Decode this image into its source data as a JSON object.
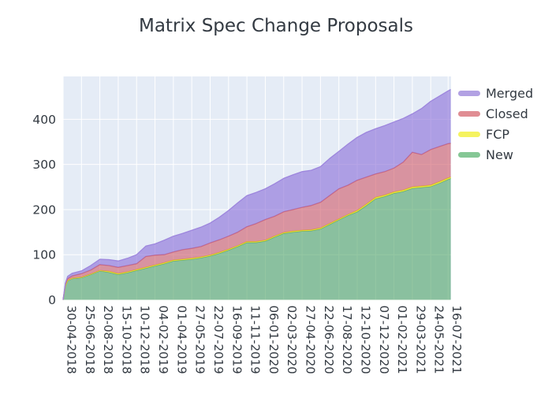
{
  "title": "Matrix Spec Change Proposals",
  "colors": {
    "background": "#ffffff",
    "plot_background": "#e5ecf6",
    "gridline": "#ffffff",
    "text": "#333a42"
  },
  "legend": {
    "items": [
      {
        "label": "Merged",
        "color": "#b2a1e3"
      },
      {
        "label": "Closed",
        "color": "#e08d93"
      },
      {
        "label": "FCP",
        "color": "#f5f35f"
      },
      {
        "label": "New",
        "color": "#85c795"
      }
    ]
  },
  "chart_data": {
    "type": "area",
    "stacked": true,
    "title": "Matrix Spec Change Proposals",
    "xlabel": "",
    "ylabel": "",
    "grid": true,
    "legend_position": "top-right-outside",
    "x_unit": "days since 30-04-2018",
    "x_max": 1181,
    "y_max": 495,
    "y_ticks": [
      0,
      100,
      200,
      300,
      400
    ],
    "x_tick_days": [
      0,
      56,
      112,
      168,
      224,
      280,
      336,
      392,
      448,
      504,
      560,
      616,
      672,
      728,
      784,
      840,
      896,
      952,
      1008,
      1064,
      1120,
      1173
    ],
    "x_tick_labels": [
      "30-04-2018",
      "25-06-2018",
      "20-08-2018",
      "15-10-2018",
      "10-12-2018",
      "04-02-2019",
      "01-04-2019",
      "27-05-2019",
      "22-07-2019",
      "16-09-2019",
      "11-11-2019",
      "06-01-2020",
      "02-03-2020",
      "27-04-2020",
      "22-06-2020",
      "17-08-2020",
      "12-10-2020",
      "07-12-2020",
      "01-02-2021",
      "29-03-2021",
      "24-05-2021",
      "16-07-2021"
    ],
    "x_days": [
      0,
      7,
      14,
      28,
      56,
      84,
      112,
      140,
      168,
      196,
      224,
      252,
      280,
      308,
      336,
      364,
      392,
      420,
      448,
      476,
      504,
      532,
      560,
      588,
      616,
      644,
      672,
      700,
      728,
      756,
      784,
      812,
      840,
      868,
      896,
      924,
      952,
      980,
      1008,
      1036,
      1064,
      1092,
      1120,
      1148,
      1173,
      1181
    ],
    "series": [
      {
        "name": "New",
        "fill": "rgba(82,165,105,0.62)",
        "line": "#5fa878",
        "values": [
          0,
          30,
          42,
          47,
          49,
          56,
          64,
          61,
          56,
          60,
          65,
          70,
          75,
          80,
          86,
          88,
          90,
          93,
          97,
          103,
          110,
          118,
          127,
          127,
          130,
          139,
          147,
          150,
          152,
          153,
          157,
          167,
          177,
          187,
          195,
          209,
          224,
          229,
          236,
          240,
          247,
          249,
          251,
          259,
          267,
          269
        ]
      },
      {
        "name": "FCP",
        "fill": "rgba(240,235,40,0.85)",
        "line": "#e3dd26",
        "values": [
          0,
          1,
          1,
          1,
          1,
          1,
          1,
          2,
          2,
          2,
          2,
          2,
          2,
          2,
          2,
          2,
          2,
          2,
          2,
          2,
          2,
          2,
          2,
          2,
          2,
          2,
          2,
          2,
          2,
          2,
          2,
          2,
          2,
          2,
          3,
          3,
          3,
          3,
          3,
          3,
          3,
          3,
          3,
          3,
          3,
          3
        ]
      },
      {
        "name": "Closed",
        "fill": "rgba(209,92,106,0.62)",
        "line": "#d26875",
        "values": [
          0,
          3,
          4,
          5,
          8,
          9,
          13,
          13,
          14,
          14,
          13,
          24,
          22,
          18,
          18,
          21,
          22,
          23,
          27,
          28,
          29,
          30,
          33,
          40,
          46,
          44,
          46,
          48,
          51,
          54,
          57,
          62,
          67,
          65,
          67,
          60,
          52,
          52,
          53,
          62,
          77,
          70,
          79,
          78,
          76,
          75
        ]
      },
      {
        "name": "Merged",
        "fill": "rgba(138,109,217,0.62)",
        "line": "#9d86dd",
        "values": [
          0,
          3,
          5,
          6,
          6,
          10,
          12,
          13,
          14,
          16,
          20,
          23,
          25,
          32,
          35,
          36,
          40,
          43,
          44,
          50,
          57,
          65,
          69,
          69,
          68,
          72,
          74,
          77,
          79,
          78,
          79,
          82,
          83,
          91,
          95,
          99,
          100,
          102,
          102,
          97,
          85,
          102,
          107,
          112,
          117,
          119
        ]
      }
    ],
    "legend_order": [
      "Merged",
      "Closed",
      "FCP",
      "New"
    ]
  }
}
